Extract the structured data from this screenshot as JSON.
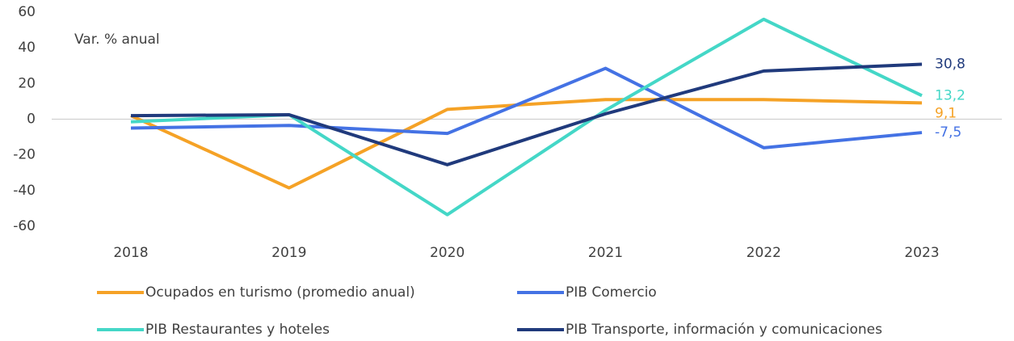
{
  "chart_data": {
    "type": "line",
    "annotation": "Var. % anual",
    "categories": [
      "2018",
      "2019",
      "2020",
      "2021",
      "2022",
      "2023"
    ],
    "series": [
      {
        "name": "Ocupados en turismo (promedio anual)",
        "color": "#F5A226",
        "values": [
          2,
          -38.5,
          5.5,
          11,
          11,
          9.1
        ],
        "value_labels": [
          null,
          null,
          null,
          null,
          null,
          "9,1"
        ]
      },
      {
        "name": "PIB Comercio",
        "color": "#4472E4",
        "values": [
          -5,
          -3.5,
          -8,
          28.5,
          -16,
          -7.5
        ],
        "value_labels": [
          null,
          null,
          null,
          null,
          null,
          "-7,5"
        ]
      },
      {
        "name": "PIB Restaurantes y hoteles",
        "color": "#44D7C7",
        "values": [
          -1.5,
          2.5,
          -53.5,
          5,
          56,
          13.2
        ],
        "value_labels": [
          null,
          null,
          null,
          null,
          null,
          "13,2"
        ]
      },
      {
        "name": "PIB Transporte, información y comunicaciones",
        "color": "#203A7C",
        "values": [
          2,
          2.5,
          -25.5,
          3,
          27,
          30.8
        ],
        "value_labels": [
          null,
          null,
          null,
          null,
          null,
          "30,8"
        ]
      }
    ],
    "ylim": [
      -60,
      60
    ],
    "yticks": [
      60,
      40,
      20,
      0,
      -20,
      -40,
      -60
    ],
    "legend": "bottom"
  }
}
